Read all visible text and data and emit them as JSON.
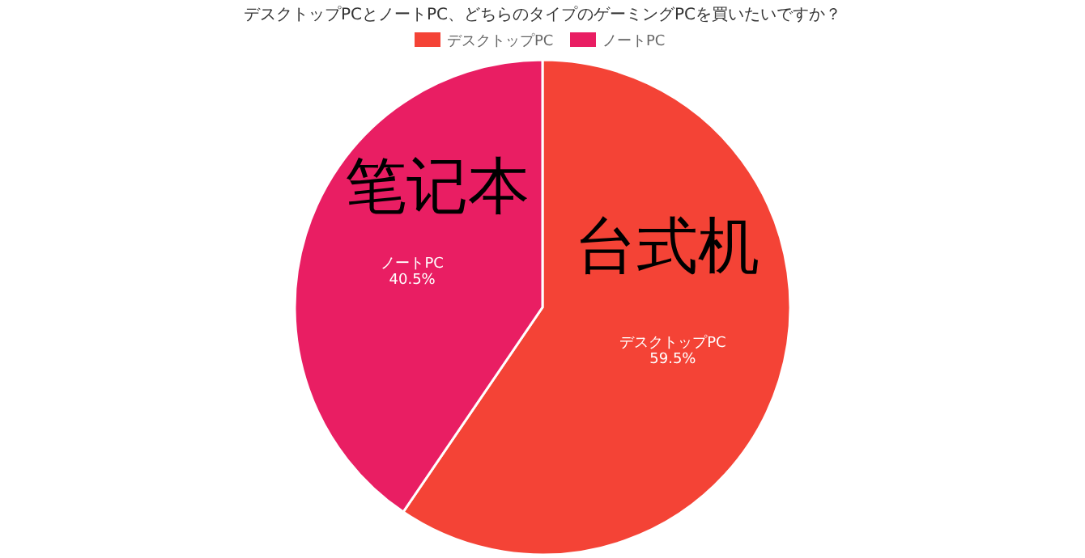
{
  "chart_data": {
    "type": "pie",
    "title": "デスクトップPCとノートPC、どちらのタイプのゲーミングPCを買いたいですか？",
    "categories": [
      "デスクトップPC",
      "ノートPC"
    ],
    "values": [
      59.5,
      40.5
    ],
    "value_labels": [
      "59.5%",
      "40.5%"
    ],
    "colors": [
      "#f44336",
      "#e91e63"
    ],
    "legend": "top",
    "annotations": [
      "台式机",
      "笔记本"
    ]
  }
}
